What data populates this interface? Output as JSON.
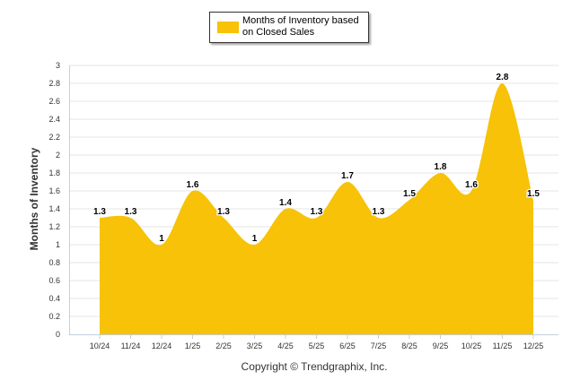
{
  "chart_data": {
    "type": "area",
    "title": "",
    "xlabel": "",
    "ylabel": "Months of Inventory",
    "categories": [
      "10/24",
      "11/24",
      "12/24",
      "1/25",
      "2/25",
      "3/25",
      "4/25",
      "5/25",
      "6/25",
      "7/25",
      "8/25",
      "9/25",
      "10/25",
      "11/25",
      "12/25"
    ],
    "series": [
      {
        "name": "Months of Inventory based on Closed Sales",
        "values": [
          1.3,
          1.3,
          1,
          1.6,
          1.3,
          1,
          1.4,
          1.3,
          1.7,
          1.3,
          1.5,
          1.8,
          1.6,
          2.8,
          1.5
        ]
      }
    ],
    "data_labels": [
      "1.3",
      "1.3",
      "1",
      "1.6",
      "1.3",
      "1",
      "1.4",
      "1.3",
      "1.7",
      "1.3",
      "1.5",
      "1.8",
      "1.6",
      "2.8",
      "1.5"
    ],
    "ylim": [
      0,
      3
    ],
    "yticks": [
      0,
      0.2,
      0.4,
      0.6,
      0.8,
      1,
      1.2,
      1.4,
      1.6,
      1.8,
      2,
      2.2,
      2.4,
      2.6,
      2.8,
      3
    ],
    "ytick_labels": [
      "0",
      "0.2",
      "0.4",
      "0.6",
      "0.8",
      "1",
      "1.2",
      "1.4",
      "1.6",
      "1.8",
      "2",
      "2.2",
      "2.4",
      "2.6",
      "2.8",
      "3"
    ],
    "grid": true,
    "legend_position": "top-center",
    "colors": {
      "area": "#F7C207",
      "grid": "#E6E6E6",
      "axis": "#C0D0E0"
    }
  },
  "legend": {
    "label": "Months of Inventory based on Closed Sales"
  },
  "footer": {
    "copyright": "Copyright © Trendgraphix, Inc."
  }
}
